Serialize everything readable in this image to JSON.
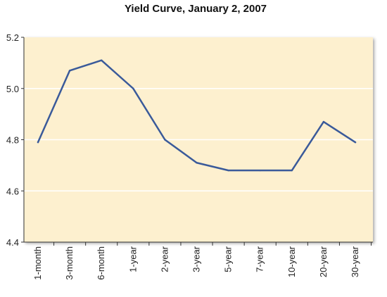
{
  "chart_data": {
    "type": "line",
    "title": "Yield Curve, January 2, 2007",
    "xlabel": "",
    "ylabel": "",
    "categories": [
      "1-month",
      "3-month",
      "6-month",
      "1-year",
      "2-year",
      "3-year",
      "5-year",
      "7-year",
      "10-year",
      "20-year",
      "30-year"
    ],
    "series": [
      {
        "values": [
          4.79,
          5.07,
          5.11,
          5.0,
          4.8,
          4.71,
          4.68,
          4.68,
          4.68,
          4.87,
          4.79
        ]
      }
    ],
    "ylim": [
      4.4,
      5.2
    ],
    "yticks": [
      "4.4",
      "4.6",
      "4.8",
      "5.0",
      "5.2"
    ],
    "grid": true,
    "colors": {
      "plot_background": "#FDF0CF",
      "line": "#3A5A9A",
      "gridline": "#FFFFFF"
    }
  }
}
